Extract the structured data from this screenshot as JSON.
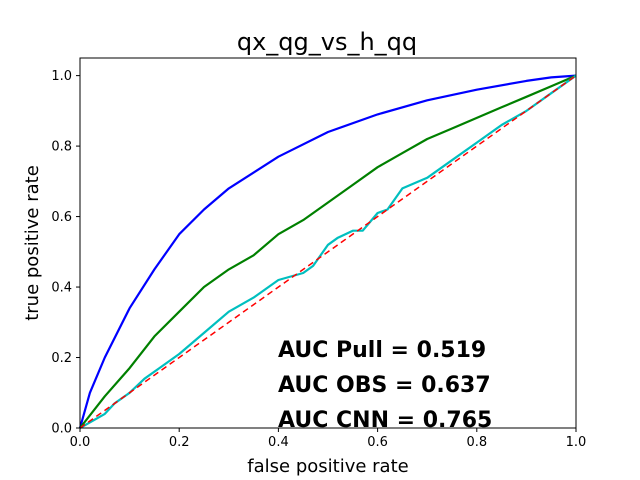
{
  "chart_data": {
    "type": "line",
    "title": "qx_qg_vs_h_qq",
    "xlabel": "false positive rate",
    "ylabel": "true positive rate",
    "xlim": [
      0.0,
      1.0
    ],
    "ylim": [
      0.0,
      1.05
    ],
    "grid": false,
    "x_ticks": [
      "0.0",
      "0.2",
      "0.4",
      "0.6",
      "0.8",
      "1.0"
    ],
    "y_ticks": [
      "0.0",
      "0.2",
      "0.4",
      "0.6",
      "0.8",
      "1.0"
    ],
    "x_tick_values": [
      0.0,
      0.2,
      0.4,
      0.6,
      0.8,
      1.0
    ],
    "y_tick_values": [
      0.0,
      0.2,
      0.4,
      0.6,
      0.8,
      1.0
    ],
    "series": [
      {
        "color": "#0000ff",
        "style": "solid",
        "x": [
          0.0,
          0.02,
          0.05,
          0.1,
          0.15,
          0.2,
          0.25,
          0.3,
          0.4,
          0.5,
          0.6,
          0.7,
          0.8,
          0.9,
          0.95,
          1.0
        ],
        "y": [
          0.0,
          0.1,
          0.2,
          0.34,
          0.45,
          0.55,
          0.62,
          0.68,
          0.77,
          0.84,
          0.89,
          0.93,
          0.96,
          0.985,
          0.995,
          1.0
        ]
      },
      {
        "color": "#008000",
        "style": "solid",
        "x": [
          0.0,
          0.05,
          0.1,
          0.15,
          0.2,
          0.25,
          0.3,
          0.35,
          0.4,
          0.45,
          0.5,
          0.55,
          0.6,
          0.65,
          0.7,
          0.75,
          0.8,
          0.85,
          0.9,
          0.95,
          1.0
        ],
        "y": [
          0.0,
          0.09,
          0.17,
          0.26,
          0.33,
          0.4,
          0.45,
          0.49,
          0.55,
          0.59,
          0.64,
          0.69,
          0.74,
          0.78,
          0.82,
          0.85,
          0.88,
          0.91,
          0.94,
          0.97,
          1.0
        ]
      },
      {
        "color": "#00bfbf",
        "style": "solid",
        "x": [
          0.0,
          0.05,
          0.07,
          0.1,
          0.13,
          0.16,
          0.2,
          0.25,
          0.3,
          0.35,
          0.4,
          0.45,
          0.47,
          0.5,
          0.52,
          0.55,
          0.57,
          0.6,
          0.62,
          0.65,
          0.7,
          0.75,
          0.8,
          0.85,
          0.9,
          0.95,
          1.0
        ],
        "y": [
          0.0,
          0.04,
          0.07,
          0.1,
          0.14,
          0.17,
          0.21,
          0.27,
          0.33,
          0.37,
          0.42,
          0.44,
          0.46,
          0.52,
          0.54,
          0.56,
          0.56,
          0.61,
          0.62,
          0.68,
          0.71,
          0.76,
          0.81,
          0.86,
          0.9,
          0.95,
          1.0
        ]
      },
      {
        "color": "#ff0000",
        "style": "dashed",
        "x": [
          0.0,
          1.0
        ],
        "y": [
          0.0,
          1.0
        ]
      }
    ],
    "annotations": [
      "AUC Pull = 0.519",
      "AUC OBS = 0.637",
      "AUC CNN = 0.765"
    ]
  }
}
